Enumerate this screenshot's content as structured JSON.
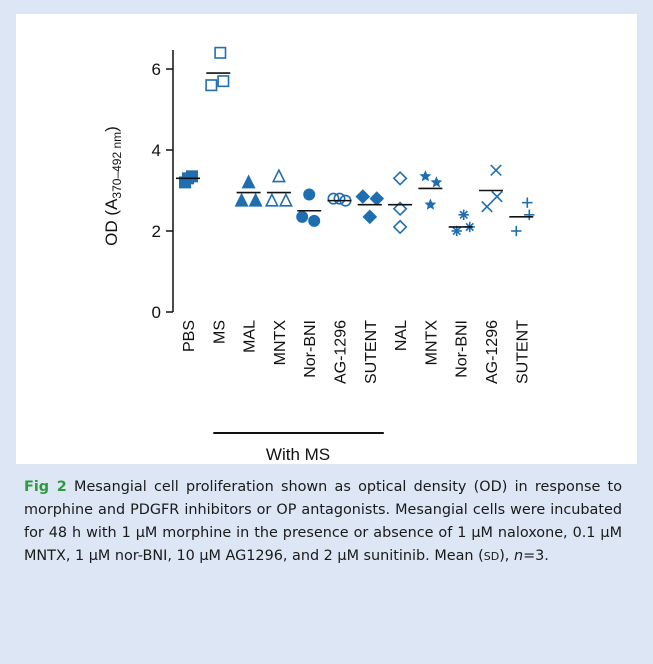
{
  "chart_data": {
    "type": "scatter",
    "ylabel_prefix": "OD (A",
    "ylabel_sub": "370–492 nm",
    "ylabel_suffix": ")",
    "ylim": [
      0,
      6.6
    ],
    "yticks": [
      "0",
      "2",
      "4",
      "6"
    ],
    "ytick_values": [
      0,
      2,
      4,
      6
    ],
    "group_label": "With MS",
    "colors": {
      "marker": "#1f6fb0",
      "mean": "#111111",
      "axis": "#111111"
    },
    "categories": [
      {
        "label": "PBS",
        "marker": "square-filled",
        "values": [
          3.3,
          3.2,
          3.35
        ],
        "mean": 3.3
      },
      {
        "label": "MS",
        "marker": "square-open",
        "values": [
          6.4,
          5.6,
          5.7
        ],
        "mean": 5.9
      },
      {
        "label": "MAL",
        "marker": "triangle-filled",
        "values": [
          3.2,
          2.75,
          2.75
        ],
        "mean": 2.95
      },
      {
        "label": "MNTX",
        "marker": "triangle-open",
        "values": [
          3.35,
          2.75,
          2.75
        ],
        "mean": 2.95
      },
      {
        "label": "Nor-BNI",
        "marker": "circle-filled",
        "values": [
          2.9,
          2.35,
          2.25
        ],
        "mean": 2.5
      },
      {
        "label": "AG-1296",
        "marker": "circle-open",
        "values": [
          2.8,
          2.8,
          2.75
        ],
        "mean": 2.75
      },
      {
        "label": "SUTENT",
        "marker": "diamond-filled",
        "values": [
          2.85,
          2.8,
          2.35
        ],
        "mean": 2.65
      },
      {
        "label": "NAL",
        "marker": "diamond-open",
        "values": [
          3.3,
          2.55,
          2.1
        ],
        "mean": 2.65
      },
      {
        "label": "MNTX",
        "marker": "star-filled",
        "values": [
          3.35,
          3.2,
          2.65
        ],
        "mean": 3.05
      },
      {
        "label": "Nor-BNI",
        "marker": "asterisk",
        "values": [
          2.4,
          2.1,
          2.0
        ],
        "mean": 2.1
      },
      {
        "label": "AG-1296",
        "marker": "x",
        "values": [
          3.5,
          2.85,
          2.6
        ],
        "mean": 3.0
      },
      {
        "label": "SUTENT",
        "marker": "plus",
        "values": [
          2.7,
          2.4,
          2.0
        ],
        "mean": 2.35
      }
    ],
    "with_ms_range": [
      1,
      6
    ]
  },
  "caption": {
    "fig_label": "Fig 2",
    "part1": "Mesangial cell proliferation shown as optical density (OD) in response to morphine and PDGFR inhibitors or OP antagonists. Mesangial cells were incubated for 48 h with 1 µM morphine in the presence or absence of 1 µM naloxone, 0.1 µM MNTX, 1 µM nor-BNI, 10 µM AG1296, and 2 µM sunitinib. Mean (",
    "sd": "SD",
    "part2": "), ",
    "n": "n",
    "part3": "=3."
  }
}
